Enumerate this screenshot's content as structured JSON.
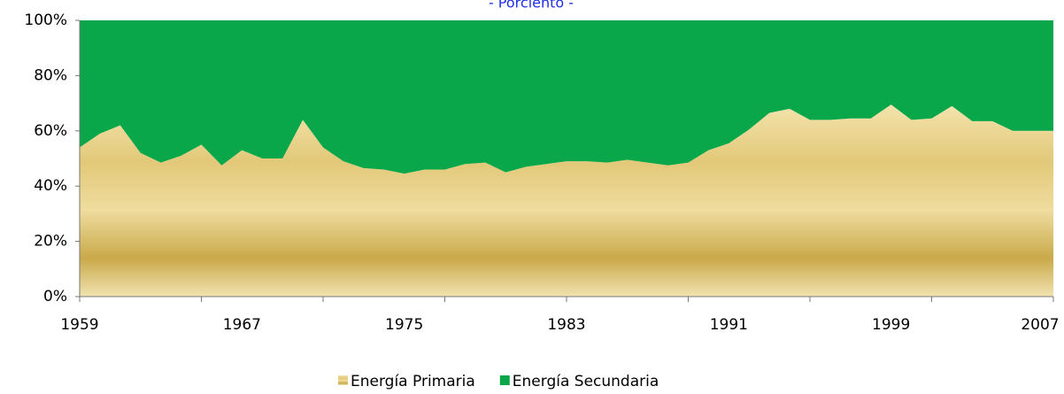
{
  "chart_data": {
    "type": "area",
    "stacked": true,
    "title": "- Porciento -",
    "categories": [
      "1959",
      null,
      null,
      null,
      null,
      null,
      null,
      null,
      "1967",
      null,
      null,
      null,
      null,
      null,
      null,
      null,
      "1975",
      null,
      null,
      null,
      null,
      null,
      null,
      null,
      "1983",
      null,
      null,
      null,
      null,
      null,
      null,
      null,
      "1991",
      null,
      null,
      null,
      null,
      null,
      null,
      null,
      "1999",
      null,
      null,
      null,
      null,
      null,
      null,
      null,
      "2007"
    ],
    "series": [
      {
        "name": "Energía Primaria",
        "color": "#d9bc62",
        "values": [
          54,
          59,
          62,
          52,
          48.5,
          51,
          55,
          47.5,
          53,
          50,
          50,
          64,
          54,
          49,
          46.5,
          46,
          44.5,
          46,
          46,
          48,
          48.5,
          45,
          47,
          48,
          49,
          49,
          48.5,
          49.5,
          48.5,
          47.5,
          48.5,
          53,
          55.5,
          60.5,
          66.5,
          68,
          64,
          64,
          64.5,
          64.5,
          69.5,
          64,
          64.5,
          69,
          63.5,
          63.5,
          60,
          60,
          60
        ]
      },
      {
        "name": "Energía Secundaria",
        "color": "#0aa64a",
        "values": [
          46,
          41,
          38,
          48,
          51.5,
          49,
          45,
          52.5,
          47,
          50,
          50,
          36,
          46,
          51,
          53.5,
          54,
          55.5,
          54,
          54,
          52,
          51.5,
          55,
          53,
          52,
          51,
          51,
          51.5,
          50.5,
          51.5,
          52.5,
          51.5,
          47,
          44.5,
          39.5,
          33.5,
          32,
          36,
          36,
          35.5,
          35.5,
          30.5,
          36,
          35.5,
          31,
          36.5,
          36.5,
          40,
          40,
          40
        ]
      }
    ],
    "ylim": [
      0,
      100
    ],
    "yticks": [
      {
        "value": 0,
        "label": "0%"
      },
      {
        "value": 20,
        "label": "20%"
      },
      {
        "value": 40,
        "label": "40%"
      },
      {
        "value": 60,
        "label": "60%"
      },
      {
        "value": 80,
        "label": "80%"
      },
      {
        "value": 100,
        "label": "100%"
      }
    ],
    "legend": "bottom"
  }
}
